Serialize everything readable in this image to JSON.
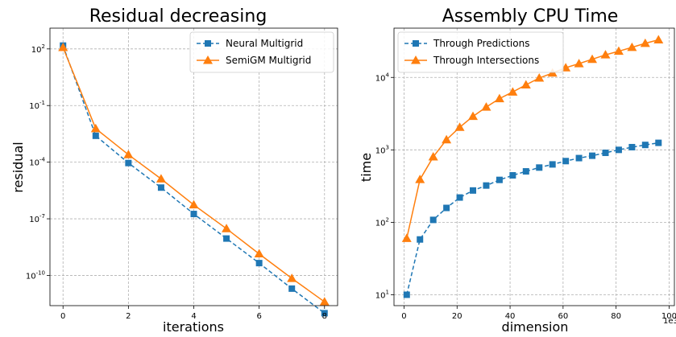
{
  "colors": {
    "blue": "#1f77b4",
    "orange": "#ff7f0e"
  },
  "chart_data": [
    {
      "type": "line",
      "title": "Residual decreasing",
      "xlabel": "iterations",
      "ylabel": "residual",
      "yscale": "log",
      "xlim": [
        -0.4,
        8.4
      ],
      "ylim_log10": [
        -11.6,
        3.1
      ],
      "xticks": [
        0,
        2,
        4,
        6,
        8
      ],
      "xtick_labels": [
        "0",
        "2",
        "4",
        "6",
        "8"
      ],
      "yticks_log10": [
        2,
        -1,
        -4,
        -7,
        -10
      ],
      "ytick_labels": [
        "10^2",
        "10^-1",
        "10^-4",
        "10^-7",
        "10^-10"
      ],
      "grid": true,
      "legend_position": "top-right",
      "x": [
        0,
        1,
        2,
        3,
        4,
        5,
        6,
        7,
        8
      ],
      "series": [
        {
          "name": "Neural Multigrid",
          "style": "dashed",
          "marker": "square",
          "color": "#1f77b4",
          "values": [
            150,
            0.0025,
            9e-05,
            4.5e-06,
            1.8e-07,
            9e-09,
            4.5e-10,
            2e-11,
            1e-12
          ]
        },
        {
          "name": "SemiGM Multigrid",
          "style": "solid",
          "marker": "triangle",
          "color": "#ff7f0e",
          "values": [
            120,
            0.006,
            0.00025,
            1.3e-05,
            5.5e-07,
            3e-08,
            1.4e-09,
            7e-11,
            4e-12
          ]
        }
      ]
    },
    {
      "type": "line",
      "title": "Assembly CPU Time",
      "xlabel": "dimension",
      "ylabel": "time",
      "yscale": "log",
      "xlim": [
        -3.8,
        102
      ],
      "ylim_log10": [
        0.85,
        4.68
      ],
      "xticks": [
        0,
        20,
        40,
        60,
        80,
        100
      ],
      "xtick_labels": [
        "0",
        "20",
        "40",
        "60",
        "80",
        "100"
      ],
      "x_offset_label": "1e3",
      "yticks_log10": [
        1,
        2,
        3,
        4
      ],
      "ytick_labels": [
        "10^1",
        "10^2",
        "10^3",
        "10^4"
      ],
      "grid": true,
      "legend_position": "top-left",
      "x": [
        1,
        6,
        11,
        16,
        21,
        26,
        31,
        36,
        41,
        46,
        51,
        56,
        61,
        66,
        71,
        76,
        81,
        86,
        91,
        96
      ],
      "series": [
        {
          "name": "Through Predictions",
          "style": "dashed",
          "marker": "square",
          "color": "#1f77b4",
          "values": [
            10,
            58,
            108,
            158,
            220,
            275,
            322,
            385,
            445,
            505,
            570,
            630,
            700,
            770,
            830,
            910,
            1000,
            1090,
            1170,
            1250
          ]
        },
        {
          "name": "Through Intersections",
          "style": "solid",
          "marker": "triangle",
          "color": "#ff7f0e",
          "values": [
            60,
            390,
            800,
            1380,
            2050,
            2900,
            3900,
            5100,
            6300,
            7900,
            9800,
            11500,
            13600,
            15500,
            17800,
            20500,
            23000,
            26000,
            29500,
            33000
          ]
        }
      ]
    }
  ]
}
